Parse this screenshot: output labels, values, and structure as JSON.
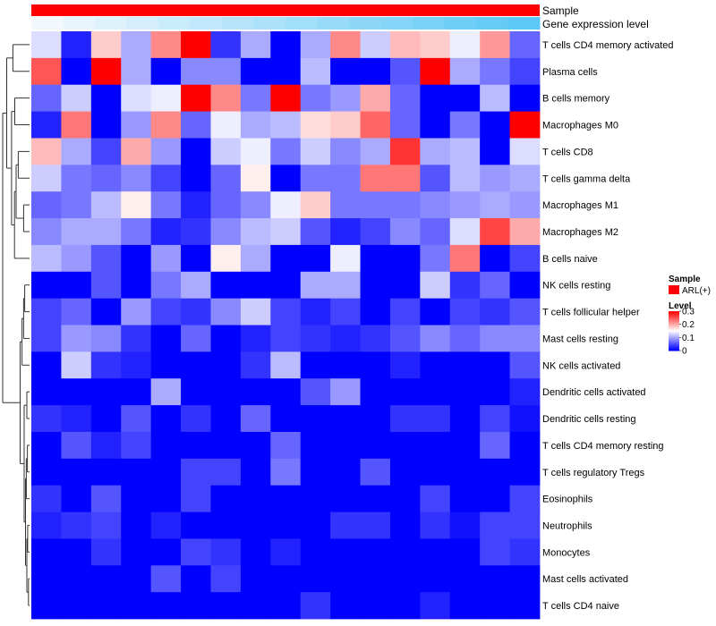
{
  "chart_data": {
    "type": "heatmap",
    "title": "",
    "colors": {
      "low": "#0000FF",
      "mid": "#FFFFFF",
      "high": "#FF0000",
      "sample": "#FF0000",
      "expr_low": "#F2F8FC",
      "expr_high": "#5BC8F5"
    },
    "annotations": {
      "sample_label": "Sample",
      "expression_label": "Gene expression level"
    },
    "legend": {
      "sample_title": "Sample",
      "sample_entry": "ARL(+)",
      "level_title": "Level",
      "level_ticks": [
        "0.3",
        "0.2",
        "0.1",
        "0"
      ],
      "range": [
        0,
        0.3
      ]
    },
    "rows": [
      "T cells CD4 memory activated",
      "Plasma cells",
      "B cells memory",
      "Macrophages M0",
      "T cells CD8",
      "T cells gamma delta",
      "Macrophages M1",
      "Macrophages M2",
      "B cells naive",
      "NK cells resting",
      "T cells follicular helper",
      "Mast cells resting",
      "NK cells activated",
      "Dendritic cells activated",
      "Dendritic cells resting",
      "T cells CD4 memory resting",
      "T cells regulatory  Tregs",
      "Eosinophils",
      "Neutrophils",
      "Monocytes",
      "Mast cells activated",
      "T cells CD4 naive"
    ],
    "expression_level": [
      0,
      0.07,
      0.13,
      0.2,
      0.27,
      0.33,
      0.4,
      0.47,
      0.53,
      0.6,
      0.67,
      0.73,
      0.8,
      0.87,
      0.93,
      1
    ],
    "values": [
      [
        0.13,
        0.02,
        0.18,
        0.1,
        0.22,
        0.3,
        0.03,
        0.1,
        0.0,
        0.1,
        0.22,
        0.12,
        0.19,
        0.18,
        0.14,
        0.21,
        0.06
      ],
      [
        0.25,
        0.0,
        0.3,
        0.1,
        0.0,
        0.08,
        0.08,
        0.0,
        0.0,
        0.11,
        0.0,
        0.0,
        0.05,
        0.3,
        0.1,
        0.07,
        0.04
      ],
      [
        0.06,
        0.12,
        0.0,
        0.13,
        0.14,
        0.3,
        0.22,
        0.07,
        0.3,
        0.07,
        0.09,
        0.2,
        0.06,
        0.0,
        0.0,
        0.11,
        0.0
      ],
      [
        0.02,
        0.23,
        0.0,
        0.09,
        0.22,
        0.06,
        0.14,
        0.1,
        0.11,
        0.17,
        0.18,
        0.24,
        0.06,
        0.0,
        0.07,
        0.0,
        0.3
      ],
      [
        0.19,
        0.1,
        0.04,
        0.2,
        0.09,
        0.0,
        0.12,
        0.14,
        0.07,
        0.12,
        0.08,
        0.1,
        0.27,
        0.1,
        0.11,
        0.0,
        0.13
      ],
      [
        0.12,
        0.07,
        0.06,
        0.08,
        0.04,
        0.0,
        0.06,
        0.16,
        0.0,
        0.07,
        0.07,
        0.23,
        0.23,
        0.05,
        0.11,
        0.09,
        0.1
      ],
      [
        0.06,
        0.07,
        0.11,
        0.16,
        0.07,
        0.02,
        0.06,
        0.08,
        0.14,
        0.18,
        0.07,
        0.07,
        0.07,
        0.08,
        0.09,
        0.1,
        0.09
      ],
      [
        0.08,
        0.1,
        0.1,
        0.07,
        0.02,
        0.03,
        0.08,
        0.11,
        0.12,
        0.05,
        0.02,
        0.04,
        0.08,
        0.06,
        0.13,
        0.26,
        0.2
      ],
      [
        0.11,
        0.09,
        0.05,
        0.0,
        0.09,
        0.0,
        0.16,
        0.1,
        0.0,
        0.0,
        0.14,
        0.0,
        0.0,
        0.07,
        0.23,
        0.0,
        0.04
      ],
      [
        0.0,
        0.0,
        0.05,
        0.0,
        0.07,
        0.1,
        0.0,
        0.0,
        0.0,
        0.1,
        0.1,
        0.0,
        0.0,
        0.12,
        0.03,
        0.06,
        0.0
      ],
      [
        0.04,
        0.06,
        0.0,
        0.09,
        0.04,
        0.03,
        0.08,
        0.12,
        0.04,
        0.02,
        0.04,
        0.0,
        0.04,
        0.0,
        0.04,
        0.03,
        0.05
      ],
      [
        0.04,
        0.09,
        0.08,
        0.03,
        0.0,
        0.06,
        0.0,
        0.02,
        0.04,
        0.03,
        0.02,
        0.03,
        0.05,
        0.08,
        0.06,
        0.08,
        0.08
      ],
      [
        0.0,
        0.12,
        0.03,
        0.02,
        0.0,
        0.0,
        0.0,
        0.03,
        0.11,
        0.0,
        0.0,
        0.0,
        0.02,
        0.0,
        0.0,
        0.0,
        0.05
      ],
      [
        0.0,
        0.0,
        0.0,
        0.0,
        0.1,
        0.0,
        0.0,
        0.0,
        0.0,
        0.05,
        0.09,
        0.0,
        0.0,
        0.0,
        0.0,
        0.0,
        0.02
      ],
      [
        0.03,
        0.02,
        0.0,
        0.05,
        0.0,
        0.03,
        0.0,
        0.06,
        0.0,
        0.0,
        0.0,
        0.0,
        0.03,
        0.03,
        0.0,
        0.04,
        0.01
      ],
      [
        0.0,
        0.05,
        0.02,
        0.04,
        0.0,
        0.0,
        0.0,
        0.0,
        0.06,
        0.0,
        0.0,
        0.0,
        0.0,
        0.0,
        0.0,
        0.06,
        0.0
      ],
      [
        0.0,
        0.0,
        0.0,
        0.0,
        0.0,
        0.04,
        0.04,
        0.0,
        0.07,
        0.0,
        0.0,
        0.05,
        0.0,
        0.0,
        0.0,
        0.0,
        0.0
      ],
      [
        0.03,
        0.0,
        0.05,
        0.0,
        0.0,
        0.04,
        0.0,
        0.0,
        0.0,
        0.0,
        0.0,
        0.0,
        0.0,
        0.04,
        0.0,
        0.0,
        0.04
      ],
      [
        0.02,
        0.03,
        0.04,
        0.0,
        0.02,
        0.0,
        0.0,
        0.0,
        0.0,
        0.0,
        0.03,
        0.03,
        0.0,
        0.03,
        0.01,
        0.04,
        0.04
      ],
      [
        0.0,
        0.0,
        0.03,
        0.0,
        0.0,
        0.04,
        0.03,
        0.0,
        0.02,
        0.0,
        0.0,
        0.0,
        0.0,
        0.0,
        0.0,
        0.04,
        0.03
      ],
      [
        0.0,
        0.0,
        0.0,
        0.0,
        0.05,
        0.0,
        0.04,
        0.0,
        0.0,
        0.0,
        0.0,
        0.0,
        0.0,
        0.0,
        0.0,
        0.0,
        0.0
      ],
      [
        0.0,
        0.0,
        0.0,
        0.0,
        0.0,
        0.0,
        0.0,
        0.0,
        0.0,
        0.03,
        0.0,
        0.0,
        0.0,
        0.02,
        0.0,
        0.0,
        0.0
      ]
    ]
  }
}
